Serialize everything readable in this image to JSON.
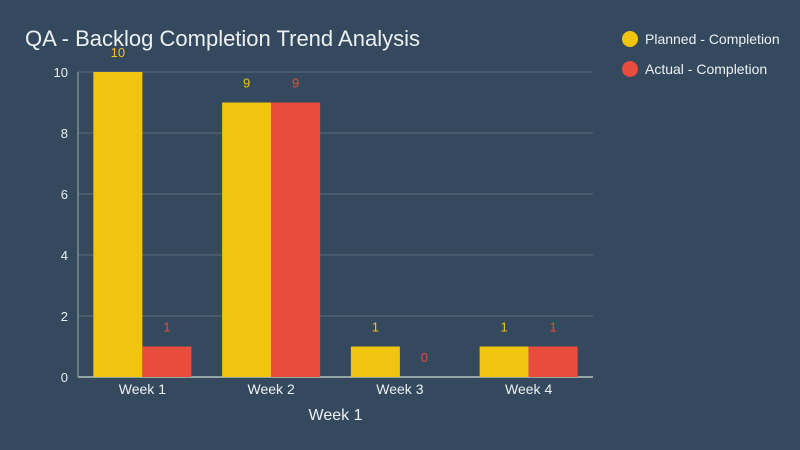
{
  "chart_data": {
    "type": "bar",
    "title": "QA - Backlog Completion Trend Analysis",
    "xlabel": "Week 1",
    "ylabel": "",
    "categories": [
      "Week 1",
      "Week 2",
      "Week 3",
      "Week 4"
    ],
    "series": [
      {
        "name": "Planned - Completion",
        "color": "#f1c40f",
        "values": [
          10,
          9,
          1,
          1
        ]
      },
      {
        "name": "Actual - Completion",
        "color": "#e74c3c",
        "values": [
          1,
          9,
          0,
          1
        ]
      }
    ],
    "ylim": [
      0,
      10
    ],
    "yticks": [
      0,
      2,
      4,
      6,
      8,
      10
    ],
    "grid": true,
    "legend_position": "top-right",
    "data_labels": true
  }
}
